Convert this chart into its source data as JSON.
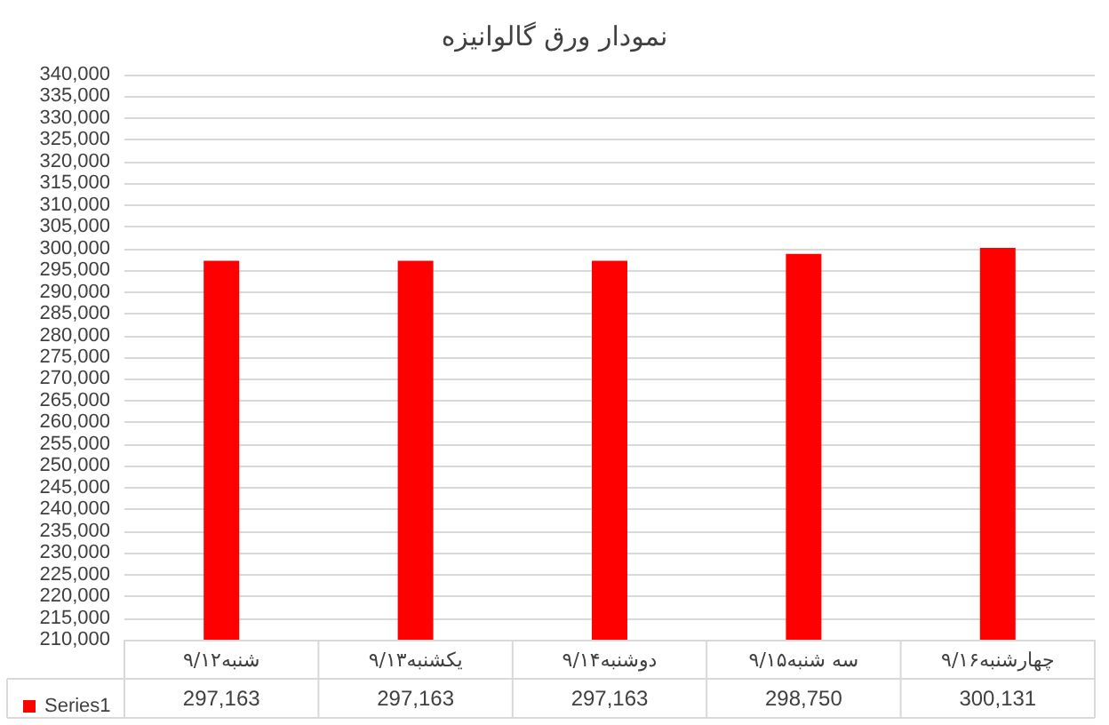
{
  "chart_data": {
    "type": "bar",
    "title": "نمودار ورق گالوانیزه",
    "categories": [
      "شنبه۹/۱۲",
      "یکشنبه۹/۱۳",
      "دوشنبه۹/۱۴",
      "سه شنبه۹/۱۵",
      "چهارشنبه۹/۱۶"
    ],
    "series": [
      {
        "name": "Series1",
        "color": "#ff0000",
        "values": [
          297163,
          297163,
          297163,
          298750,
          300131
        ],
        "value_labels": [
          "297,163",
          "297,163",
          "297,163",
          "298,750",
          "300,131"
        ]
      }
    ],
    "ylim": [
      210000,
      340000
    ],
    "yticks": [
      {
        "value": 210000,
        "label": "210,000"
      },
      {
        "value": 215000,
        "label": "215,000"
      },
      {
        "value": 220000,
        "label": "220,000"
      },
      {
        "value": 225000,
        "label": "225,000"
      },
      {
        "value": 230000,
        "label": "230,000"
      },
      {
        "value": 235000,
        "label": "235,000"
      },
      {
        "value": 240000,
        "label": "240,000"
      },
      {
        "value": 245000,
        "label": "245,000"
      },
      {
        "value": 250000,
        "label": "250,000"
      },
      {
        "value": 255000,
        "label": "255,000"
      },
      {
        "value": 260000,
        "label": "260,000"
      },
      {
        "value": 265000,
        "label": "265,000"
      },
      {
        "value": 270000,
        "label": "270,000"
      },
      {
        "value": 275000,
        "label": "275,000"
      },
      {
        "value": 280000,
        "label": "280,000"
      },
      {
        "value": 285000,
        "label": "285,000"
      },
      {
        "value": 290000,
        "label": "290,000"
      },
      {
        "value": 295000,
        "label": "295,000"
      },
      {
        "value": 300000,
        "label": "300,000"
      },
      {
        "value": 305000,
        "label": "305,000"
      },
      {
        "value": 310000,
        "label": "310,000"
      },
      {
        "value": 315000,
        "label": "315,000"
      },
      {
        "value": 320000,
        "label": "320,000"
      },
      {
        "value": 325000,
        "label": "325,000"
      },
      {
        "value": 330000,
        "label": "330,000"
      },
      {
        "value": 335000,
        "label": "335,000"
      },
      {
        "value": 340000,
        "label": "340,000"
      }
    ],
    "grid": "y",
    "legend": "bottom left"
  }
}
